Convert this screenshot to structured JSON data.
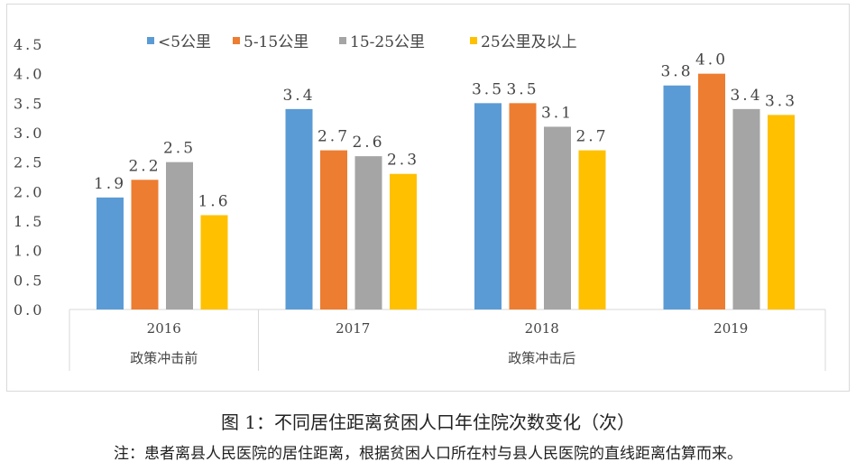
{
  "chart_data": {
    "type": "bar",
    "title": "图 1：不同居住距离贫困人口年住院次数变化（次）",
    "note": "注：患者离县人民医院的居住距离，根据贫困人口所在村与县人民医院的直线距离估算而来。",
    "categories": [
      "2016",
      "2017",
      "2018",
      "2019"
    ],
    "groups": [
      {
        "label": "政策冲击前",
        "categories": [
          "2016"
        ]
      },
      {
        "label": "政策冲击后",
        "categories": [
          "2017",
          "2018",
          "2019"
        ]
      }
    ],
    "series": [
      {
        "name": "<5公里",
        "color": "#5b9bd5",
        "values": [
          1.9,
          3.4,
          3.5,
          3.8
        ],
        "labels": [
          "1.9",
          "3.4",
          "3.5",
          "3.8"
        ]
      },
      {
        "name": "5-15公里",
        "color": "#ed7d31",
        "values": [
          2.2,
          2.7,
          3.5,
          4.0
        ],
        "labels": [
          "2.2",
          "2.7",
          "3.5",
          "4.0"
        ]
      },
      {
        "name": "15-25公里",
        "color": "#a5a5a5",
        "values": [
          2.5,
          2.6,
          3.1,
          3.4
        ],
        "labels": [
          "2.5",
          "2.6",
          "3.1",
          "3.4"
        ]
      },
      {
        "name": "25公里及以上",
        "color": "#ffc000",
        "values": [
          1.6,
          2.3,
          2.7,
          3.3
        ],
        "labels": [
          "1.6",
          "2.3",
          "2.7",
          "3.3"
        ]
      }
    ],
    "yticks": [
      "0.0",
      "0.5",
      "1.0",
      "1.5",
      "2.0",
      "2.5",
      "3.0",
      "3.5",
      "4.0",
      "4.5"
    ],
    "ylim": [
      0,
      4.5
    ],
    "legend": "top",
    "grid": false,
    "xlabel": "",
    "ylabel": ""
  }
}
